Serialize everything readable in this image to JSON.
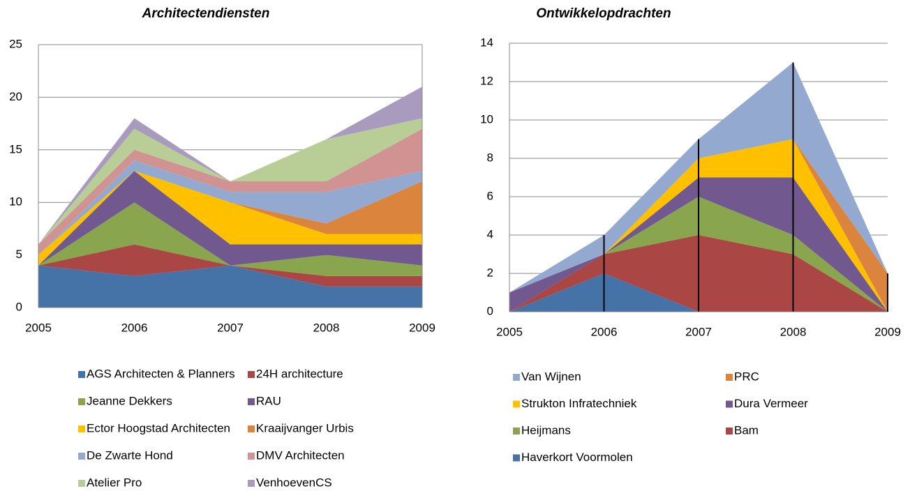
{
  "chart_data": [
    {
      "type": "area",
      "stacked": true,
      "title": "Architectendiensten",
      "x": [
        2005,
        2006,
        2007,
        2008,
        2009
      ],
      "xlim": [
        2005,
        2009
      ],
      "xticks": [
        2005,
        2006,
        2007,
        2008,
        2009
      ],
      "ylim": [
        0,
        25
      ],
      "yticks": [
        0,
        5,
        10,
        15,
        20,
        25
      ],
      "grid": true,
      "drop_lines": false,
      "legend_order": "normal",
      "series": [
        {
          "name": "AGS Architecten & Planners",
          "color": "#4572a7",
          "values": [
            4,
            3,
            4,
            2,
            2
          ]
        },
        {
          "name": "24H architecture",
          "color": "#aa4643",
          "values": [
            0,
            3,
            0,
            1,
            1
          ]
        },
        {
          "name": "Jeanne Dekkers",
          "color": "#89a54e",
          "values": [
            0,
            4,
            0,
            2,
            1
          ]
        },
        {
          "name": "RAU",
          "color": "#71588f",
          "values": [
            0,
            3,
            2,
            1,
            2
          ]
        },
        {
          "name": "Ector Hoogstad Architecten",
          "color": "#ffc000",
          "values": [
            1,
            0,
            4,
            1,
            1
          ]
        },
        {
          "name": "Kraaijvanger Urbis",
          "color": "#db843d",
          "values": [
            0,
            0,
            0,
            1,
            5
          ]
        },
        {
          "name": "De Zwarte Hond",
          "color": "#93a9cf",
          "values": [
            0,
            1,
            1,
            3,
            1
          ]
        },
        {
          "name": "DMV Architecten",
          "color": "#d19392",
          "values": [
            1,
            1,
            1,
            1,
            4
          ]
        },
        {
          "name": "Atelier Pro",
          "color": "#b9cd96",
          "values": [
            0,
            2,
            0,
            4,
            1
          ]
        },
        {
          "name": "VenhoevenCS",
          "color": "#a99bbd",
          "values": [
            0,
            1,
            0,
            0,
            3
          ]
        }
      ]
    },
    {
      "type": "area",
      "stacked": true,
      "title": "Ontwikkelopdrachten",
      "x": [
        2005,
        2006,
        2007,
        2008,
        2009
      ],
      "xlim": [
        2005,
        2009
      ],
      "xticks": [
        2005,
        2006,
        2007,
        2008,
        2009
      ],
      "ylim": [
        0,
        14
      ],
      "yticks": [
        0,
        2,
        4,
        6,
        8,
        10,
        12,
        14
      ],
      "grid": true,
      "drop_lines": true,
      "legend_order": "reverse",
      "series": [
        {
          "name": "Haverkort Voormolen",
          "color": "#4572a7",
          "values": [
            0,
            2,
            0,
            0,
            0
          ]
        },
        {
          "name": "Bam",
          "color": "#aa4643",
          "values": [
            0,
            1,
            4,
            3,
            0
          ]
        },
        {
          "name": "Heijmans",
          "color": "#89a54e",
          "values": [
            0,
            0,
            2,
            1,
            0
          ]
        },
        {
          "name": "Dura Vermeer",
          "color": "#71588f",
          "values": [
            1,
            0,
            1,
            3,
            0
          ]
        },
        {
          "name": "Strukton Infratechniek",
          "color": "#ffc000",
          "values": [
            0,
            0,
            1,
            2,
            0
          ]
        },
        {
          "name": "PRC",
          "color": "#db843d",
          "values": [
            0,
            0,
            0,
            0,
            2
          ]
        },
        {
          "name": "Van Wijnen",
          "color": "#93a9cf",
          "values": [
            0,
            1,
            1,
            4,
            0
          ]
        }
      ]
    }
  ]
}
